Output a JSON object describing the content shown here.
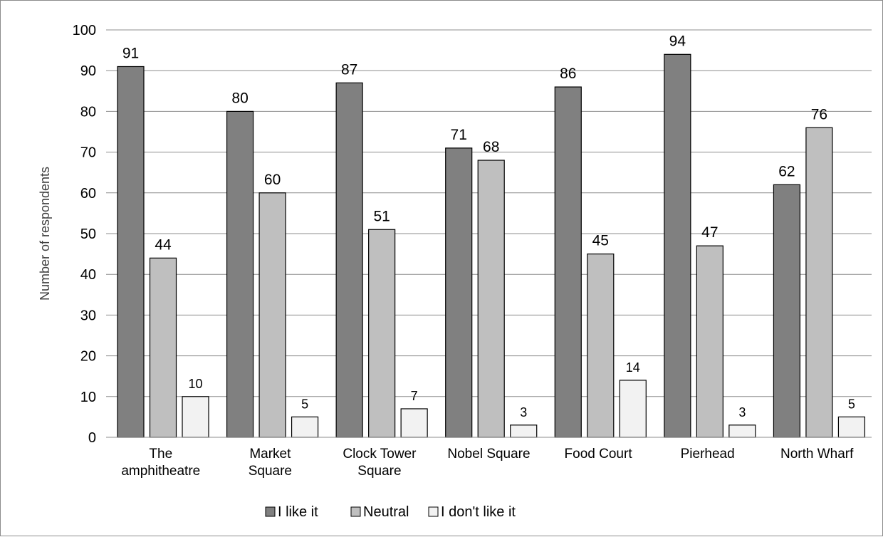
{
  "chart_data": {
    "type": "bar",
    "categories": [
      [
        "The",
        "amphitheatre"
      ],
      [
        "Market",
        "Square"
      ],
      [
        "Clock Tower",
        "Square"
      ],
      [
        "Nobel Square"
      ],
      [
        "Food Court"
      ],
      [
        "Pierhead"
      ],
      [
        "North Wharf"
      ]
    ],
    "series": [
      {
        "name": "I like it",
        "color": "#808080",
        "values": [
          91,
          80,
          87,
          71,
          86,
          94,
          62
        ]
      },
      {
        "name": "Neutral",
        "color": "#bfbfbf",
        "values": [
          44,
          60,
          51,
          68,
          45,
          47,
          76
        ]
      },
      {
        "name": "I don't like it",
        "color": "#f2f2f2",
        "values": [
          10,
          5,
          7,
          3,
          14,
          3,
          5
        ]
      }
    ],
    "ylabel": "Number of respondents",
    "xlabel": "",
    "ylim": [
      0,
      100
    ],
    "yticks": [
      0,
      10,
      20,
      30,
      40,
      50,
      60,
      70,
      80,
      90,
      100
    ],
    "grid": true,
    "legend_position": "bottom"
  }
}
